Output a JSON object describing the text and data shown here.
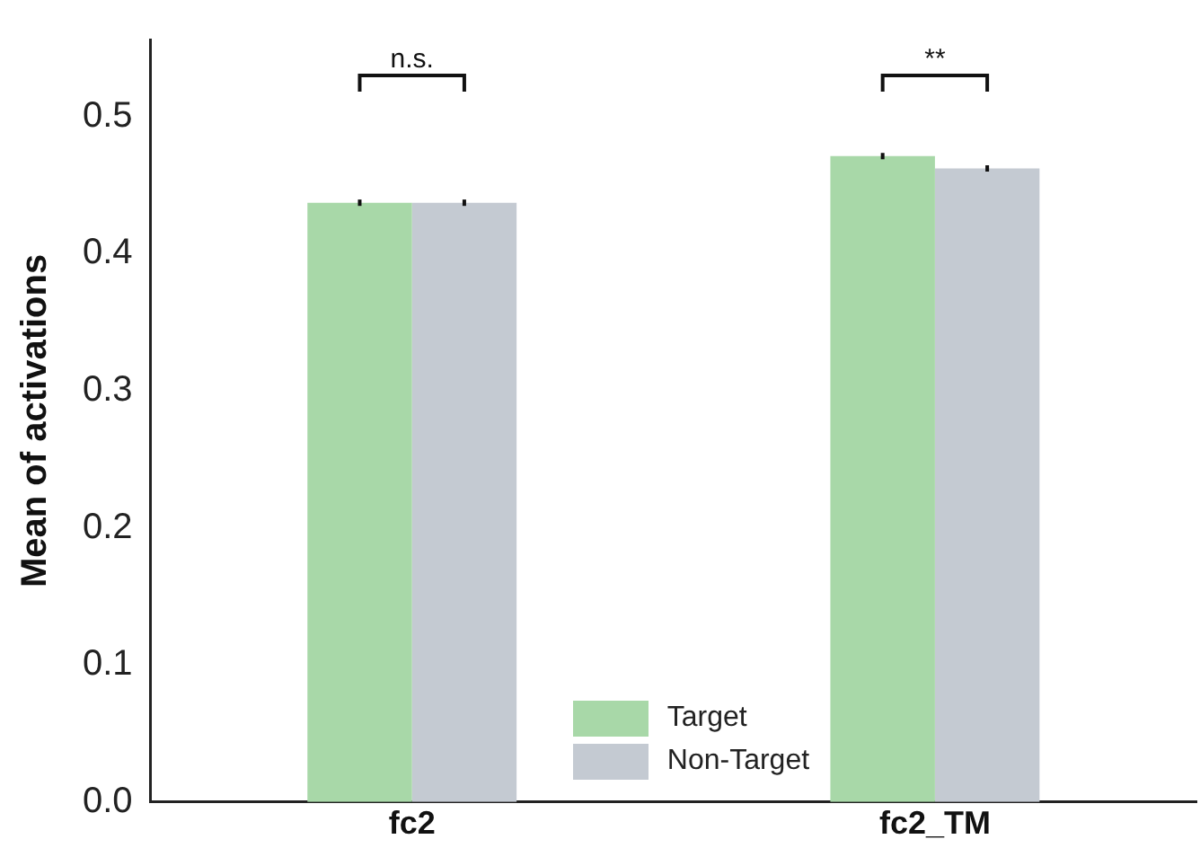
{
  "chart_data": {
    "type": "bar",
    "ylabel": "Mean of activations",
    "categories": [
      "fc2",
      "fc2_TM"
    ],
    "series": [
      {
        "name": "Target",
        "color": "#a8d8a8",
        "values": [
          0.437,
          0.471
        ],
        "errors": [
          0.001,
          0.001
        ]
      },
      {
        "name": "Non-Target",
        "color": "#c4cad2",
        "values": [
          0.437,
          0.462
        ],
        "errors": [
          0.001,
          0.001
        ]
      }
    ],
    "ylim": [
      0,
      0.556
    ],
    "yticks": [
      {
        "value": 0,
        "label": "0.0"
      },
      {
        "value": 0.1,
        "label": "0.1"
      },
      {
        "value": 0.2,
        "label": "0.2"
      },
      {
        "value": 0.3,
        "label": "0.3"
      },
      {
        "value": 0.4,
        "label": "0.4"
      },
      {
        "value": 0.5,
        "label": "0.5"
      }
    ],
    "annotations": [
      "n.s.",
      "**"
    ],
    "grid": false,
    "legend": "bottom"
  }
}
